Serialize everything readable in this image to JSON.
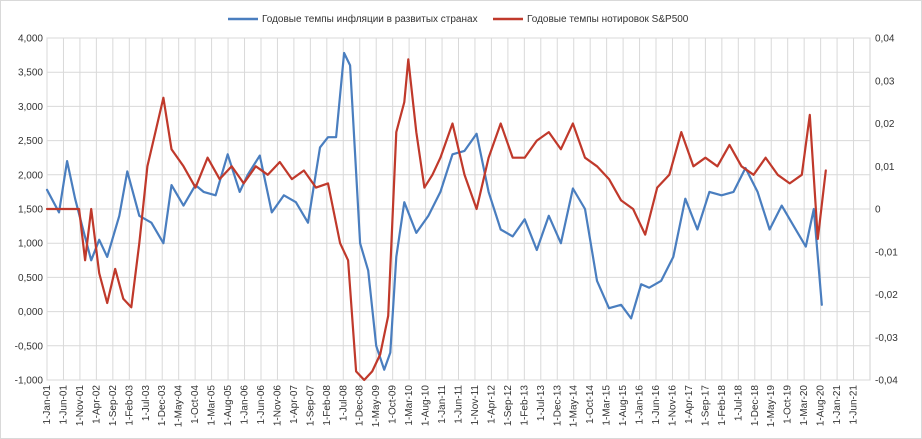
{
  "chart_data": {
    "type": "line",
    "title": "",
    "legend": {
      "placement": "top",
      "entries": [
        {
          "name": "Годовые темпы инфляции в развитых странах",
          "color": "#4a7ebf"
        },
        {
          "name": "Годовые темпы нотировок S&P500",
          "color": "#c0392b"
        }
      ]
    },
    "grid": {
      "x": true,
      "y": true
    },
    "y_left": {
      "ylim": [
        -1.0,
        4.0
      ],
      "tick_labels": [
        "-1,000",
        "-0,500",
        "0,000",
        "0,500",
        "1,000",
        "1,500",
        "2,000",
        "2,500",
        "3,000",
        "3,500",
        "4,000"
      ]
    },
    "y_right": {
      "ylim": [
        -0.04,
        0.04
      ],
      "tick_labels": [
        "-0,04",
        "-0,03",
        "-0,02",
        "-0,01",
        "0",
        "0,01",
        "0,02",
        "0,03",
        "0,04"
      ]
    },
    "x": {
      "tick_labels": [
        "1-Jan-01",
        "1-Jun-01",
        "1-Nov-01",
        "1-Apr-02",
        "1-Sep-02",
        "1-Feb-03",
        "1-Jul-03",
        "1-Dec-03",
        "1-May-04",
        "1-Oct-04",
        "1-Mar-05",
        "1-Aug-05",
        "1-Jan-06",
        "1-Jun-06",
        "1-Nov-06",
        "1-Apr-07",
        "1-Sep-07",
        "1-Feb-08",
        "1-Jul-08",
        "1-Dec-08",
        "1-May-09",
        "1-Oct-09",
        "1-Mar-10",
        "1-Aug-10",
        "1-Jan-11",
        "1-Jun-11",
        "1-Nov-11",
        "1-Apr-12",
        "1-Sep-12",
        "1-Feb-13",
        "1-Jul-13",
        "1-Dec-13",
        "1-May-14",
        "1-Oct-14",
        "1-Mar-15",
        "1-Aug-15",
        "1-Jan-16",
        "1-Jun-16",
        "1-Nov-16",
        "1-Apr-17",
        "1-Sep-17",
        "1-Feb-18",
        "1-Jul-18",
        "1-Dec-18",
        "1-May-19",
        "1-Oct-19",
        "1-Mar-20",
        "1-Aug-20",
        "1-Jan-21",
        "1-Jun-21"
      ]
    },
    "series": [
      {
        "name": "Годовые темпы инфляции в развитых странах",
        "axis": "left",
        "color": "#4a7ebf",
        "x": [
          2001.0,
          2001.3,
          2001.5,
          2001.7,
          2001.9,
          2002.1,
          2002.3,
          2002.5,
          2002.8,
          2003.0,
          2003.3,
          2003.6,
          2003.9,
          2004.1,
          2004.4,
          2004.7,
          2004.9,
          2005.2,
          2005.5,
          2005.8,
          2006.0,
          2006.3,
          2006.6,
          2006.9,
          2007.2,
          2007.5,
          2007.8,
          2008.0,
          2008.2,
          2008.4,
          2008.55,
          2008.8,
          2009.0,
          2009.2,
          2009.4,
          2009.55,
          2009.7,
          2009.9,
          2010.2,
          2010.5,
          2010.8,
          2011.1,
          2011.4,
          2011.7,
          2012.0,
          2012.3,
          2012.6,
          2012.9,
          2013.2,
          2013.5,
          2013.8,
          2014.1,
          2014.4,
          2014.7,
          2015.0,
          2015.3,
          2015.55,
          2015.8,
          2016.0,
          2016.3,
          2016.6,
          2016.9,
          2017.2,
          2017.5,
          2017.8,
          2018.1,
          2018.4,
          2018.7,
          2019.0,
          2019.3,
          2019.6,
          2019.9,
          2020.1,
          2020.3
        ],
        "values": [
          1.78,
          1.45,
          2.2,
          1.65,
          1.2,
          0.75,
          1.05,
          0.8,
          1.4,
          2.05,
          1.4,
          1.3,
          1.0,
          1.85,
          1.55,
          1.85,
          1.75,
          1.7,
          2.3,
          1.75,
          2.0,
          2.28,
          1.45,
          1.7,
          1.6,
          1.3,
          2.4,
          2.55,
          2.55,
          3.78,
          3.6,
          1.0,
          0.6,
          -0.5,
          -0.85,
          -0.6,
          0.8,
          1.6,
          1.15,
          1.4,
          1.75,
          2.3,
          2.35,
          2.6,
          1.75,
          1.2,
          1.1,
          1.35,
          0.9,
          1.4,
          1.0,
          1.8,
          1.5,
          0.45,
          0.05,
          0.1,
          -0.1,
          0.4,
          0.35,
          0.45,
          0.8,
          1.65,
          1.2,
          1.75,
          1.7,
          1.75,
          2.1,
          1.75,
          1.2,
          1.55,
          1.25,
          0.95,
          1.5,
          0.1
        ]
      },
      {
        "name": "Годовые темпы нотировок S&P500",
        "axis": "right",
        "color": "#c0392b",
        "x": [
          2001.0,
          2001.4,
          2001.8,
          2001.95,
          2002.1,
          2002.3,
          2002.5,
          2002.7,
          2002.9,
          2003.1,
          2003.3,
          2003.5,
          2003.7,
          2003.9,
          2004.1,
          2004.4,
          2004.7,
          2005.0,
          2005.3,
          2005.6,
          2005.9,
          2006.2,
          2006.5,
          2006.8,
          2007.1,
          2007.4,
          2007.7,
          2008.0,
          2008.3,
          2008.5,
          2008.7,
          2008.9,
          2009.1,
          2009.3,
          2009.5,
          2009.7,
          2009.9,
          2010.0,
          2010.2,
          2010.4,
          2010.6,
          2010.8,
          2011.1,
          2011.4,
          2011.7,
          2012.0,
          2012.3,
          2012.6,
          2012.9,
          2013.2,
          2013.5,
          2013.8,
          2014.1,
          2014.4,
          2014.7,
          2015.0,
          2015.3,
          2015.6,
          2015.9,
          2016.2,
          2016.5,
          2016.8,
          2017.1,
          2017.4,
          2017.7,
          2018.0,
          2018.3,
          2018.6,
          2018.9,
          2019.2,
          2019.5,
          2019.8,
          2020.0,
          2020.2,
          2020.4
        ],
        "values": [
          0.0,
          0.0,
          0.0,
          -0.012,
          0.0,
          -0.015,
          -0.022,
          -0.014,
          -0.021,
          -0.023,
          -0.008,
          0.01,
          0.018,
          0.026,
          0.014,
          0.01,
          0.005,
          0.012,
          0.007,
          0.01,
          0.006,
          0.01,
          0.008,
          0.011,
          0.007,
          0.009,
          0.005,
          0.006,
          -0.008,
          -0.012,
          -0.038,
          -0.04,
          -0.038,
          -0.034,
          -0.025,
          0.018,
          0.025,
          0.035,
          0.018,
          0.005,
          0.008,
          0.012,
          0.02,
          0.008,
          0.0,
          0.012,
          0.02,
          0.012,
          0.012,
          0.016,
          0.018,
          0.014,
          0.02,
          0.012,
          0.01,
          0.007,
          0.002,
          0.0,
          -0.006,
          0.005,
          0.008,
          0.018,
          0.01,
          0.012,
          0.01,
          0.015,
          0.01,
          0.008,
          0.012,
          0.008,
          0.006,
          0.008,
          0.022,
          -0.007,
          0.009
        ]
      }
    ]
  }
}
